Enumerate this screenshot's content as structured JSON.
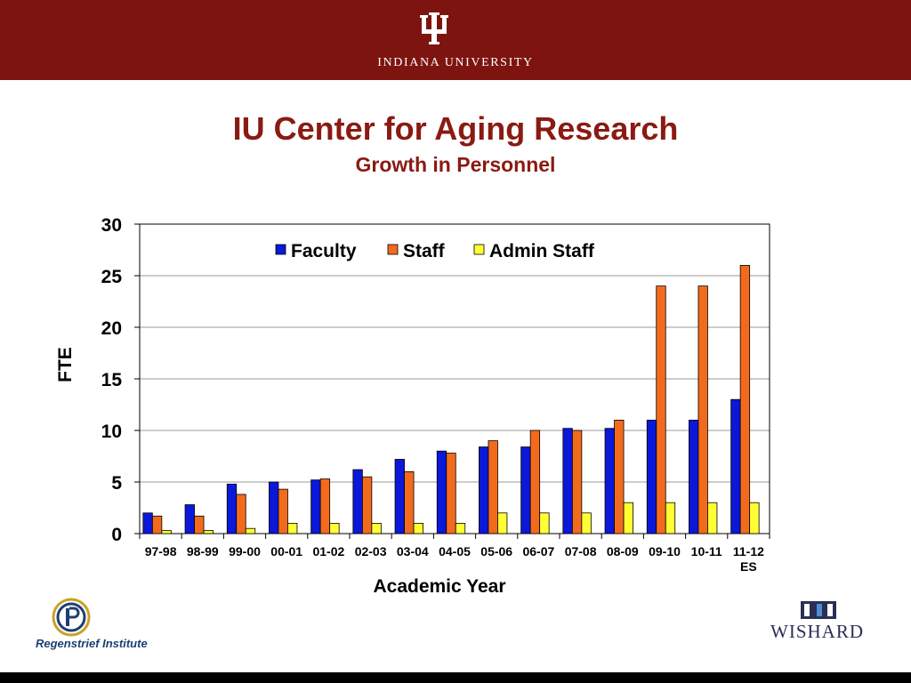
{
  "banner": {
    "institution": "INDIANA UNIVERSITY",
    "bg_color": "#7d1410"
  },
  "title": "IU Center for Aging Research",
  "subtitle": "Growth in Personnel",
  "chart_data": {
    "type": "bar",
    "categories": [
      "97-98",
      "98-99",
      "99-00",
      "00-01",
      "01-02",
      "02-03",
      "03-04",
      "04-05",
      "05-06",
      "06-07",
      "07-08",
      "08-09",
      "09-10",
      "10-11",
      "11-12\nES"
    ],
    "series": [
      {
        "name": "Faculty",
        "color": "#0b18d9",
        "values": [
          2,
          2.8,
          4.8,
          5,
          5.2,
          6.2,
          7.2,
          8,
          8.4,
          8.4,
          10.2,
          10.2,
          11,
          11,
          13
        ]
      },
      {
        "name": "Staff",
        "color": "#f26b1d",
        "values": [
          1.7,
          1.7,
          3.8,
          4.3,
          5.3,
          5.5,
          6,
          7.8,
          9,
          10,
          10,
          11,
          24,
          24,
          26
        ]
      },
      {
        "name": "Admin Staff",
        "color": "#ffff33",
        "values": [
          0.3,
          0.3,
          0.5,
          1,
          1,
          1,
          1,
          1,
          2,
          2,
          2,
          3,
          3,
          3,
          3
        ]
      }
    ],
    "xlabel": "Academic Year",
    "ylabel": "FTE",
    "ylim": [
      0,
      30
    ],
    "yticks": [
      0,
      5,
      10,
      15,
      20,
      25,
      30
    ],
    "grid": true,
    "legend": "top-center"
  },
  "footer": {
    "left_logo_text": "Regenstrief Institute",
    "right_logo_text": "WISHARD"
  }
}
